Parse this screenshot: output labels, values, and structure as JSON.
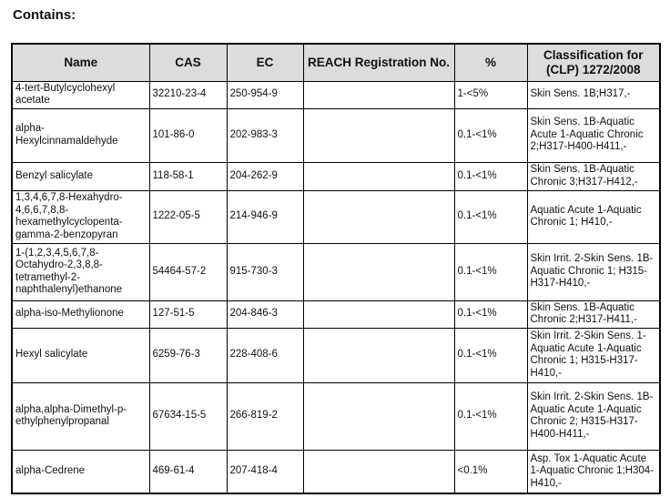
{
  "page": {
    "heading": "Contains:"
  },
  "colors": {
    "header_background": "#dcdcdc",
    "border": "#000000",
    "text": "#111111",
    "page_background": "#ffffff"
  },
  "table": {
    "headers": {
      "name": "Name",
      "cas": "CAS",
      "ec": "EC",
      "reach": "REACH Registration No.",
      "percent": "%",
      "classification": "Classification for (CLP) 1272/2008"
    },
    "rows": [
      {
        "name": "4-tert-Butylcyclohexyl acetate",
        "cas": "32210-23-4",
        "ec": "250-954-9",
        "reach": "",
        "percent": "1-<5%",
        "classification": "Skin Sens. 1B;H317,-"
      },
      {
        "name": "alpha-Hexylcinnamaldehyde",
        "cas": "101-86-0",
        "ec": "202-983-3",
        "reach": "",
        "percent": "0.1-<1%",
        "classification": "Skin Sens. 1B-Aquatic Acute 1-Aquatic Chronic 2;H317-H400-H411,-"
      },
      {
        "name": "Benzyl salicylate",
        "cas": "118-58-1",
        "ec": "204-262-9",
        "reach": "",
        "percent": "0.1-<1%",
        "classification": "Skin Sens. 1B-Aquatic Chronic 3;H317-H412,-"
      },
      {
        "name": "1,3,4,6,7,8-Hexahydro-4,6,6,7,8,8-hexamethylcyclopenta-gamma-2-benzopyran",
        "cas": "1222-05-5",
        "ec": "214-946-9",
        "reach": "",
        "percent": "0.1-<1%",
        "classification": "Aquatic Acute 1-Aquatic Chronic 1; H410,-"
      },
      {
        "name": "1-(1,2,3,4,5,6,7,8-Octahydro-2,3,8,8-tetramethyl-2-naphthalenyl)ethanone",
        "cas": "54464-57-2",
        "ec": "915-730-3",
        "reach": "",
        "percent": "0.1-<1%",
        "classification": "Skin Irrit. 2-Skin Sens. 1B-Aquatic Chronic 1; H315-H317-H410,-"
      },
      {
        "name": "alpha-iso-Methylionone",
        "cas": "127-51-5",
        "ec": "204-846-3",
        "reach": "",
        "percent": "0.1-<1%",
        "classification": "Skin Sens. 1B-Aquatic Chronic 2;H317-H411,-"
      },
      {
        "name": "Hexyl salicylate",
        "cas": "6259-76-3",
        "ec": "228-408-6",
        "reach": "",
        "percent": "0.1-<1%",
        "classification": "Skin Irrit. 2-Skin Sens. 1-Aquatic Acute 1-Aquatic Chronic 1; H315-H317-H410,-"
      },
      {
        "name": "alpha,alpha-Dimethyl-p-ethylphenylpropanal",
        "cas": "67634-15-5",
        "ec": "266-819-2",
        "reach": "",
        "percent": "0.1-<1%",
        "classification": "Skin Irrit. 2-Skin Sens. 1B-Aquatic Acute 1-Aquatic Chronic 2; H315-H317-H400-H411,-"
      },
      {
        "name": "alpha-Cedrene",
        "cas": "469-61-4",
        "ec": "207-418-4",
        "reach": "",
        "percent": "<0.1%",
        "classification": "Asp. Tox 1-Aquatic Acute 1-Aquatic Chronic 1;H304-H410,-"
      }
    ]
  }
}
